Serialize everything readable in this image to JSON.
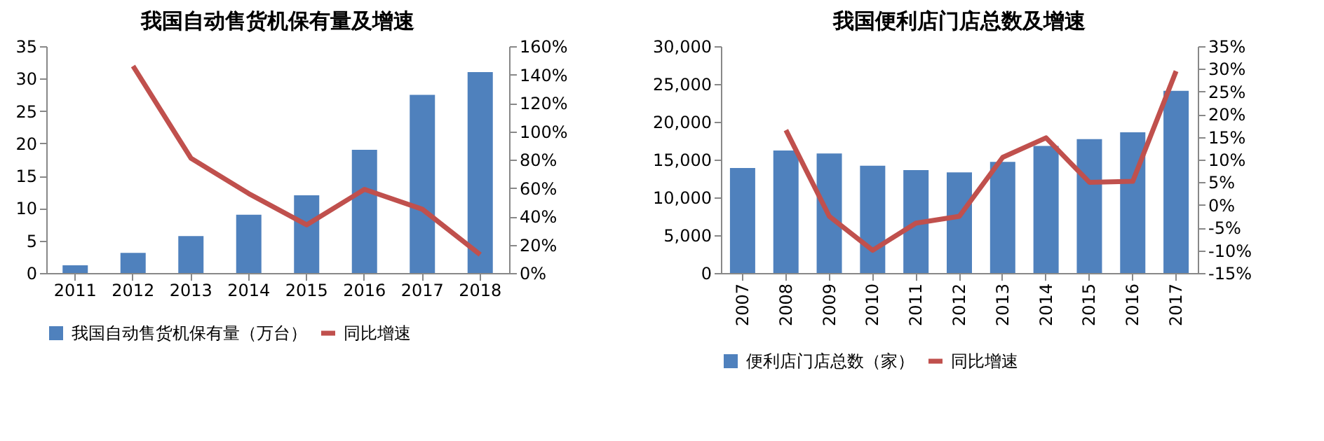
{
  "chart_data": [
    {
      "type": "bar",
      "title": "我国自动售货机保有量及增速",
      "categories": [
        "2011",
        "2012",
        "2013",
        "2014",
        "2015",
        "2016",
        "2017",
        "2018"
      ],
      "series": [
        {
          "name": "我国自动售货机保有量（万台）",
          "color": "#4f81bd",
          "values": [
            1.2,
            3.1,
            5.7,
            9,
            12,
            19,
            27.5,
            31
          ]
        },
        {
          "name": "同比增速",
          "type": "line",
          "axis": "y2",
          "color": "#c0504d",
          "values": [
            null,
            146,
            81,
            56,
            34,
            59,
            45,
            13
          ]
        }
      ],
      "ylim": [
        0,
        35
      ],
      "yticks": [
        0,
        5,
        10,
        15,
        20,
        25,
        30,
        35
      ],
      "y2lim": [
        0,
        160
      ],
      "y2ticks": [
        {
          "value": 0,
          "label": "0%"
        },
        {
          "value": 20,
          "label": "20%"
        },
        {
          "value": 40,
          "label": "40%"
        },
        {
          "value": 60,
          "label": "60%"
        },
        {
          "value": 80,
          "label": "80%"
        },
        {
          "value": 100,
          "label": "100%"
        },
        {
          "value": 120,
          "label": "120%"
        },
        {
          "value": 140,
          "label": "140%"
        },
        {
          "value": 160,
          "label": "160%"
        }
      ],
      "grid": false,
      "legend": "bottom",
      "marker": "none",
      "line_style": "solid"
    },
    {
      "type": "bar",
      "title": "我国便利店门店总数及增速",
      "categories": [
        "2007",
        "2008",
        "2009",
        "2010",
        "2011",
        "2012",
        "2013",
        "2014",
        "2015",
        "2016",
        "2017"
      ],
      "series": [
        {
          "name": "便利店门店总数（家）",
          "color": "#4f81bd",
          "values": [
            13900,
            16200,
            15800,
            14200,
            13600,
            13300,
            14700,
            16800,
            17700,
            18600,
            24100
          ]
        },
        {
          "name": "同比增速",
          "type": "line",
          "axis": "y2",
          "color": "#c0504d",
          "values": [
            null,
            16.5,
            -2.5,
            -10,
            -4,
            -2.5,
            10.5,
            14.8,
            5,
            5.2,
            29.5
          ]
        }
      ],
      "ylim": [
        0,
        30000
      ],
      "yticks": [
        0,
        {
          "value": 5000,
          "label": "5,000"
        },
        {
          "value": 10000,
          "label": "10,000"
        },
        {
          "value": 15000,
          "label": "15,000"
        },
        {
          "value": 20000,
          "label": "20,000"
        },
        {
          "value": 25000,
          "label": "25,000"
        },
        {
          "value": 30000,
          "label": "30,000"
        }
      ],
      "y2lim": [
        -15,
        35
      ],
      "y2ticks": [
        {
          "value": -15,
          "label": "-15%"
        },
        {
          "value": -10,
          "label": "-10%"
        },
        {
          "value": -5,
          "label": "-5%"
        },
        {
          "value": 0,
          "label": "0%"
        },
        {
          "value": 5,
          "label": "5%"
        },
        {
          "value": 10,
          "label": "10%"
        },
        {
          "value": 15,
          "label": "15%"
        },
        {
          "value": 20,
          "label": "20%"
        },
        {
          "value": 25,
          "label": "25%"
        },
        {
          "value": 30,
          "label": "30%"
        },
        {
          "value": 35,
          "label": "35%"
        }
      ],
      "grid": false,
      "legend": "bottom",
      "marker": "none",
      "line_style": "solid"
    }
  ]
}
